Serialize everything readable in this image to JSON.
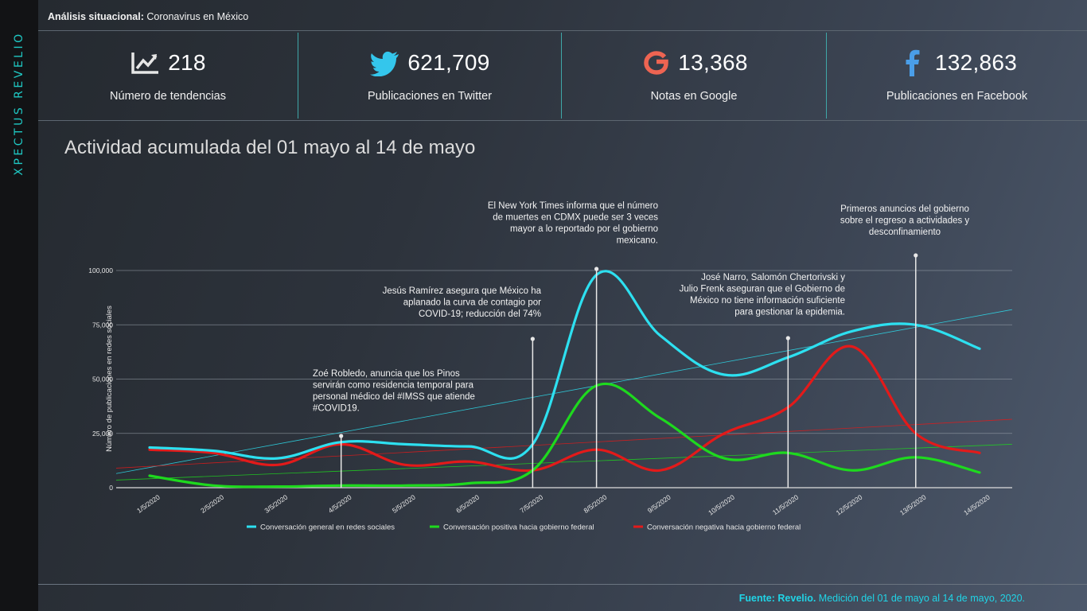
{
  "brand": "XPECTUS REVELIO",
  "header": {
    "title_bold": "Análisis situacional:",
    "title_rest": " Coronavirus en México"
  },
  "kpis": [
    {
      "icon": "trend-chart-icon",
      "value": "218",
      "label": "Número de tendencias"
    },
    {
      "icon": "twitter-icon",
      "value": "621,709",
      "label": "Publicaciones en Twitter"
    },
    {
      "icon": "google-icon",
      "value": "13,368",
      "label": "Notas en Google"
    },
    {
      "icon": "facebook-icon",
      "value": "132,863",
      "label": "Publicaciones en Facebook"
    }
  ],
  "chart_title": "Actividad acumulada del 01 mayo al 14 de mayo",
  "chart_data": {
    "type": "line",
    "title": "",
    "ylabel": "Número de publicaciones en redes sociales",
    "xlabel": "",
    "ylim": [
      0,
      100000
    ],
    "yticks": [
      "0",
      "25,000",
      "50,000",
      "75,000",
      "100,000"
    ],
    "categories": [
      "1/5/2020",
      "2/5/2020",
      "3/5/2020",
      "4/5/2020",
      "5/5/2020",
      "6/5/2020",
      "7/5/2020",
      "8/5/2020",
      "9/5/2020",
      "10/5/2020",
      "11/5/2020",
      "12/5/2020",
      "13/5/2020",
      "14/5/2020"
    ],
    "series": [
      {
        "name": "Conversación general en redes sociales",
        "color": "#2de0f0",
        "values": [
          18500,
          17000,
          13500,
          21000,
          20000,
          19000,
          20000,
          98000,
          70000,
          52000,
          60000,
          72000,
          75000,
          64000
        ],
        "trend": [
          6500,
          82000
        ]
      },
      {
        "name": "Conversación positiva hacia gobierno federal",
        "color": "#1ed91e",
        "values": [
          5500,
          1000,
          500,
          1000,
          1000,
          2000,
          8000,
          47000,
          32000,
          13500,
          16000,
          8000,
          14000,
          7000
        ],
        "trend": [
          3500,
          20000
        ]
      },
      {
        "name": "Conversación negativa hacia gobierno federal",
        "color": "#e31a1a",
        "values": [
          17500,
          16000,
          10500,
          20000,
          10500,
          12000,
          8000,
          17500,
          8000,
          25000,
          37000,
          65000,
          25000,
          16000
        ],
        "trend": [
          9000,
          31500
        ]
      }
    ],
    "events": [
      {
        "x": "4/5/2020",
        "text": [
          "Zoé Robledo, anuncia que los Pinos",
          "servirán como residencia temporal para",
          "personal médico del #IMSS  que atiende",
          "#COVID19."
        ]
      },
      {
        "x": "7/5/2020",
        "text": [
          "Jesús Ramírez asegura que México ha",
          "aplanado la curva de contagio por",
          "COVID-19; reducción del 74%"
        ]
      },
      {
        "x": "8/5/2020",
        "text": [
          "El New York Times informa que el número",
          "de muertes en CDMX puede ser 3 veces",
          "mayor a lo reportado por el gobierno",
          "mexicano."
        ]
      },
      {
        "x": "11/5/2020",
        "text": [
          "José Narro, Salomón Chertorivski y",
          "Julio Frenk aseguran que el Gobierno de",
          "México no tiene información suficiente",
          "para gestionar la epidemia."
        ]
      },
      {
        "x": "13/5/2020",
        "text": [
          "Primeros anuncios del gobierno",
          "sobre el regreso a actividades y",
          "desconfinamiento"
        ]
      }
    ]
  },
  "footer": {
    "source_bold": "Fuente: Revelio.",
    "source_rest": " Medición del 01 de mayo al 14 de mayo, 2020."
  }
}
